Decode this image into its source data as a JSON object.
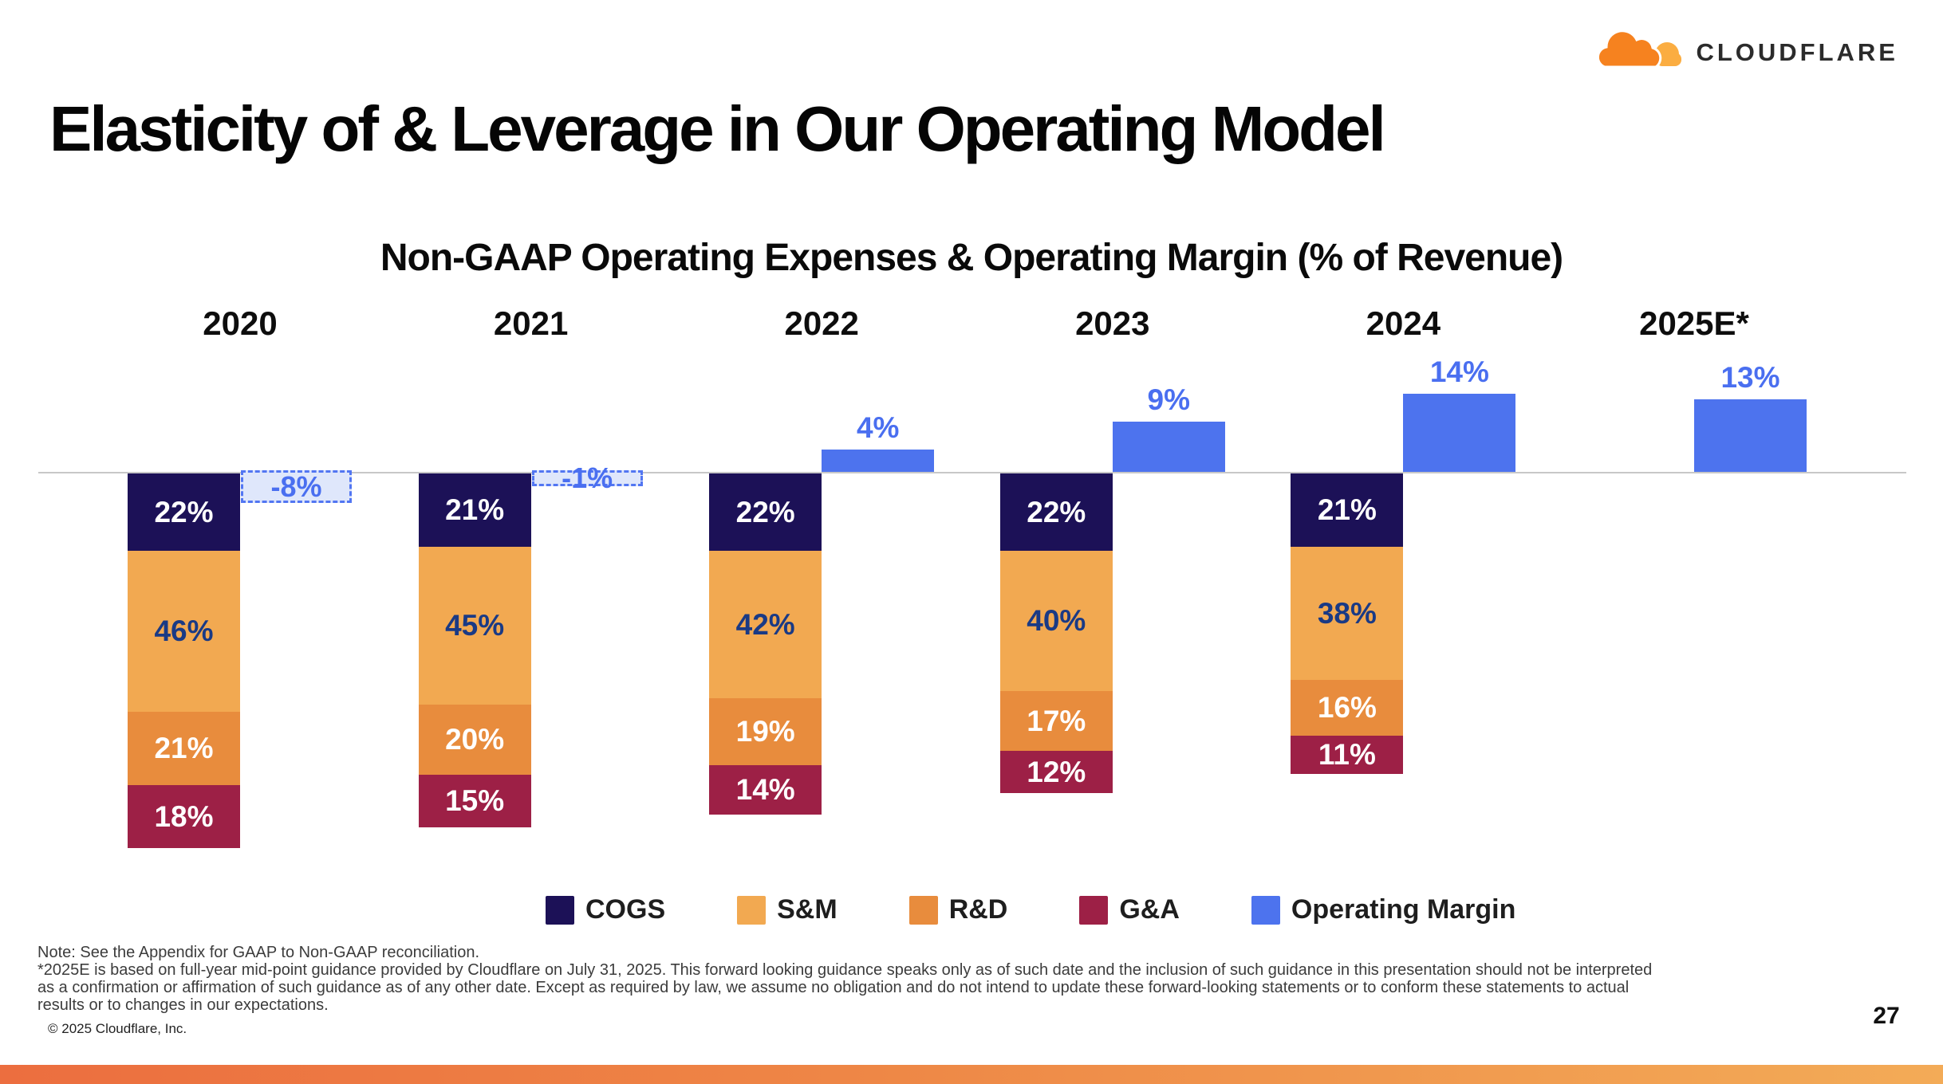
{
  "logo": {
    "wordmark": "CLOUDFLARE"
  },
  "page": {
    "title": "Elasticity of & Leverage in Our Operating Model",
    "page_number": "27",
    "copyright": "© 2025 Cloudflare, Inc."
  },
  "chart_data": {
    "type": "bar",
    "title": "Non-GAAP Operating Expenses & Operating Margin (% of Revenue)",
    "categories": [
      "2020",
      "2021",
      "2022",
      "2023",
      "2024",
      "2025E*"
    ],
    "series": [
      {
        "name": "COGS",
        "color": "#1c1157",
        "values": [
          22,
          21,
          22,
          22,
          21,
          null
        ]
      },
      {
        "name": "S&M",
        "color": "#f2a951",
        "values": [
          46,
          45,
          42,
          40,
          38,
          null
        ]
      },
      {
        "name": "R&D",
        "color": "#e88c3d",
        "values": [
          21,
          20,
          19,
          17,
          16,
          null
        ]
      },
      {
        "name": "G&A",
        "color": "#9d2046",
        "values": [
          18,
          15,
          14,
          12,
          11,
          null
        ]
      },
      {
        "name": "Operating Margin",
        "color": "#4d73ee",
        "values": [
          -8,
          -1,
          4,
          9,
          14,
          13
        ]
      }
    ],
    "value_suffix": "%",
    "legend_position": "bottom",
    "grid": false,
    "layout_note": "Expense stacks plotted downward from the zero axis; operating margin bars plotted upward; negative margins shown as dashed light-blue boxes below the axis.",
    "negative_margin_style": {
      "fill": "#dfe7fb",
      "border": "#5276f2",
      "text": "#4a6ff0"
    },
    "axis_color": "#c8c8c8"
  },
  "legend": {
    "items": [
      {
        "label": "COGS",
        "color": "#1c1157"
      },
      {
        "label": "S&M",
        "color": "#f2a951"
      },
      {
        "label": "R&D",
        "color": "#e88c3d"
      },
      {
        "label": "G&A",
        "color": "#9d2046"
      },
      {
        "label": "Operating Margin",
        "color": "#4d73ee"
      }
    ]
  },
  "footnotes": {
    "lines": [
      "Note: See the Appendix for GAAP to Non-GAAP reconciliation.",
      "*2025E is based on full-year mid-point guidance provided by Cloudflare on July 31, 2025. This forward looking guidance speaks only as of such date and the inclusion of such guidance in this presentation should not be interpreted",
      "as a confirmation or affirmation of such guidance as of any other date. Except as required by law, we assume no obligation and do not intend to update these forward-looking statements or to conform these statements to actual",
      "results or to changes in our expectations."
    ]
  }
}
